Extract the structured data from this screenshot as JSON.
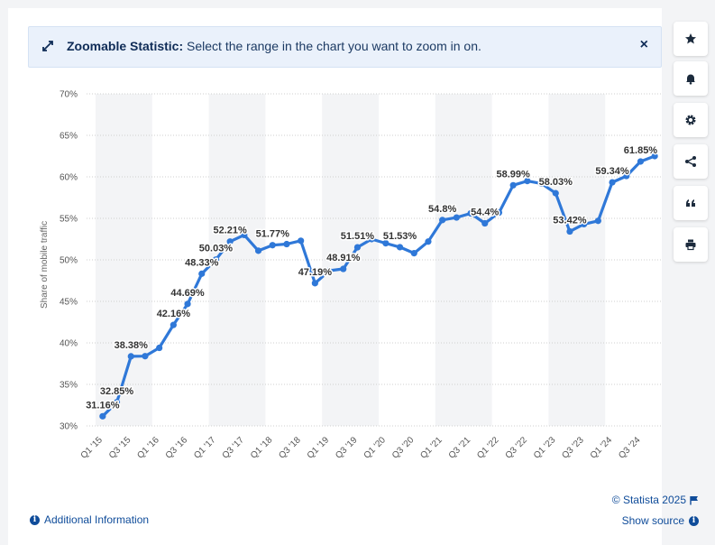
{
  "banner": {
    "title": "Zoomable Statistic:",
    "text": "Select the range in the chart you want to zoom in on.",
    "close_label": "×"
  },
  "footer": {
    "additional_info": "Additional Information",
    "copyright": "© Statista 2025",
    "show_source": "Show source"
  },
  "side_buttons": [
    {
      "icon": "star-icon"
    },
    {
      "icon": "bell-icon"
    },
    {
      "icon": "gear-icon"
    },
    {
      "icon": "share-icon"
    },
    {
      "icon": "quote-icon"
    },
    {
      "icon": "print-icon"
    }
  ],
  "colors": {
    "line": "#2f78d8",
    "banner_bg": "#eaf1fb",
    "link": "#0f4c9a",
    "band": "#f3f4f6"
  },
  "chart_data": {
    "type": "line",
    "title": "",
    "xlabel": "",
    "ylabel": "Share of mobile traffic",
    "ylim": [
      30,
      70
    ],
    "yticks": [
      "30%",
      "35%",
      "40%",
      "45%",
      "50%",
      "55%",
      "60%",
      "65%",
      "70%"
    ],
    "grid": true,
    "categories": [
      "Q1 '15",
      "Q2 '15",
      "Q3 '15",
      "Q4 '15",
      "Q1 '16",
      "Q2 '16",
      "Q3 '16",
      "Q4 '16",
      "Q1 '17",
      "Q2 '17",
      "Q3 '17",
      "Q4 '17",
      "Q1 '18",
      "Q2 '18",
      "Q3 '18",
      "Q4 '18",
      "Q1 '19",
      "Q2 '19",
      "Q3 '19",
      "Q4 '19",
      "Q1 '20",
      "Q2 '20",
      "Q3 '20",
      "Q4 '20",
      "Q1 '21",
      "Q2 '21",
      "Q3 '21",
      "Q4 '21",
      "Q1 '22",
      "Q2 '22",
      "Q3 '22",
      "Q4 '22",
      "Q1 '23",
      "Q2 '23",
      "Q3 '23",
      "Q4 '23",
      "Q1 '24",
      "Q2 '24",
      "Q3 '24",
      "Q4 '24"
    ],
    "xtick_labels": [
      "Q1 '15",
      "Q3 '15",
      "Q1 '16",
      "Q3 '16",
      "Q1 '17",
      "Q3 '17",
      "Q1 '18",
      "Q3 '18",
      "Q1 '19",
      "Q3 '19",
      "Q1 '20",
      "Q3 '20",
      "Q1 '21",
      "Q3 '21",
      "Q1 '22",
      "Q3 '22",
      "Q1 '23",
      "Q3 '23",
      "Q1 '24",
      "Q3 '24"
    ],
    "values": [
      31.16,
      32.85,
      38.38,
      38.4,
      39.4,
      42.16,
      44.69,
      48.33,
      50.03,
      52.21,
      53.0,
      51.1,
      51.77,
      51.9,
      52.3,
      47.19,
      48.7,
      48.91,
      51.51,
      52.5,
      52.0,
      51.53,
      50.8,
      52.2,
      54.8,
      55.1,
      55.6,
      54.4,
      55.7,
      58.99,
      59.5,
      59.2,
      58.03,
      53.42,
      54.3,
      54.7,
      59.34,
      60.1,
      61.85,
      62.5
    ],
    "data_labels": [
      {
        "index": 0,
        "text": "31.16%"
      },
      {
        "index": 1,
        "text": "32.85%"
      },
      {
        "index": 2,
        "text": "38.38%"
      },
      {
        "index": 5,
        "text": "42.16%"
      },
      {
        "index": 6,
        "text": "44.69%"
      },
      {
        "index": 7,
        "text": "48.33%"
      },
      {
        "index": 8,
        "text": "50.03%"
      },
      {
        "index": 9,
        "text": "52.21%"
      },
      {
        "index": 12,
        "text": "51.77%"
      },
      {
        "index": 15,
        "text": "47.19%"
      },
      {
        "index": 17,
        "text": "48.91%"
      },
      {
        "index": 18,
        "text": "51.51%"
      },
      {
        "index": 21,
        "text": "51.53%"
      },
      {
        "index": 24,
        "text": "54.8%"
      },
      {
        "index": 27,
        "text": "54.4%"
      },
      {
        "index": 29,
        "text": "58.99%"
      },
      {
        "index": 32,
        "text": "58.03%"
      },
      {
        "index": 33,
        "text": "53.42%"
      },
      {
        "index": 36,
        "text": "59.34%"
      },
      {
        "index": 38,
        "text": "61.85%"
      }
    ]
  }
}
